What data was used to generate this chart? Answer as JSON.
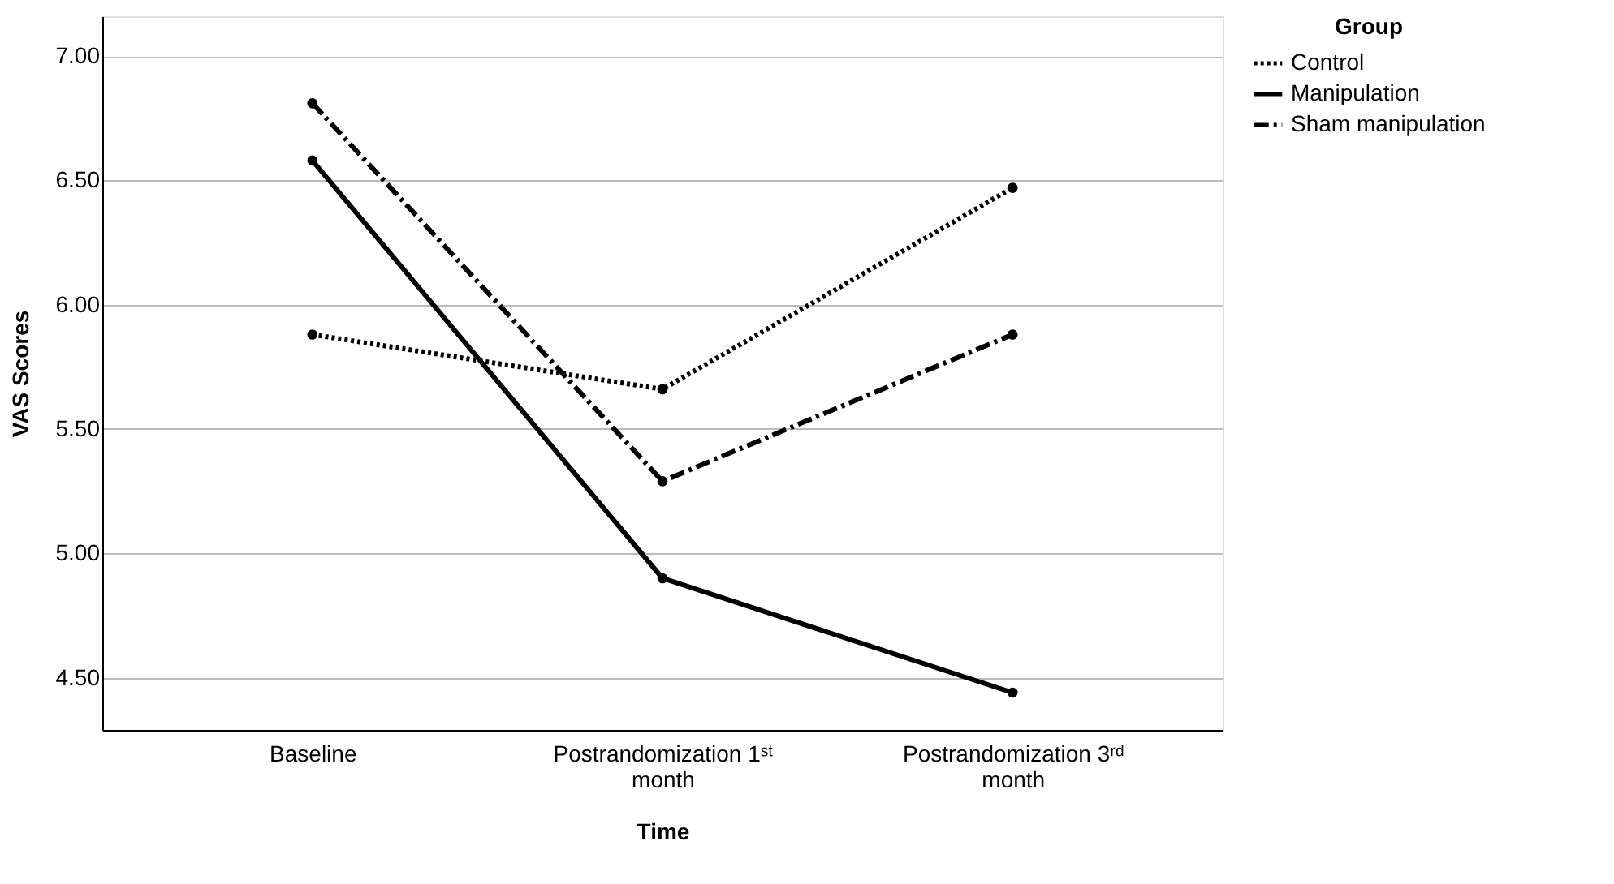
{
  "chart_data": {
    "type": "line",
    "xlabel": "Time",
    "ylabel": "VAS Scores",
    "legend_title": "Group",
    "categories": [
      "Baseline",
      "Postrandomization 1ˢᵗ month",
      "Postrandomization 3ʳᵈ month"
    ],
    "series": [
      {
        "name": "Control",
        "color": "#000000",
        "line_style": "dotted",
        "values": [
          5.88,
          5.66,
          6.47
        ]
      },
      {
        "name": "Manipulation",
        "color": "#000000",
        "line_style": "solid",
        "values": [
          6.58,
          4.9,
          4.44
        ]
      },
      {
        "name": "Sham manipulation",
        "color": "#000000",
        "line_style": "dashed",
        "values": [
          6.81,
          5.29,
          5.88
        ]
      }
    ],
    "ylim": [
      4.29,
      7.16
    ],
    "yticks": [
      {
        "value": 4.5,
        "label": "4.50"
      },
      {
        "value": 5.0,
        "label": "5.00"
      },
      {
        "value": 5.5,
        "label": "5.50"
      },
      {
        "value": 6.0,
        "label": "6.00"
      },
      {
        "value": 6.5,
        "label": "6.50"
      },
      {
        "value": 7.0,
        "label": "7.00"
      }
    ],
    "grid": "y",
    "legend": "top right",
    "marker": "circle"
  }
}
